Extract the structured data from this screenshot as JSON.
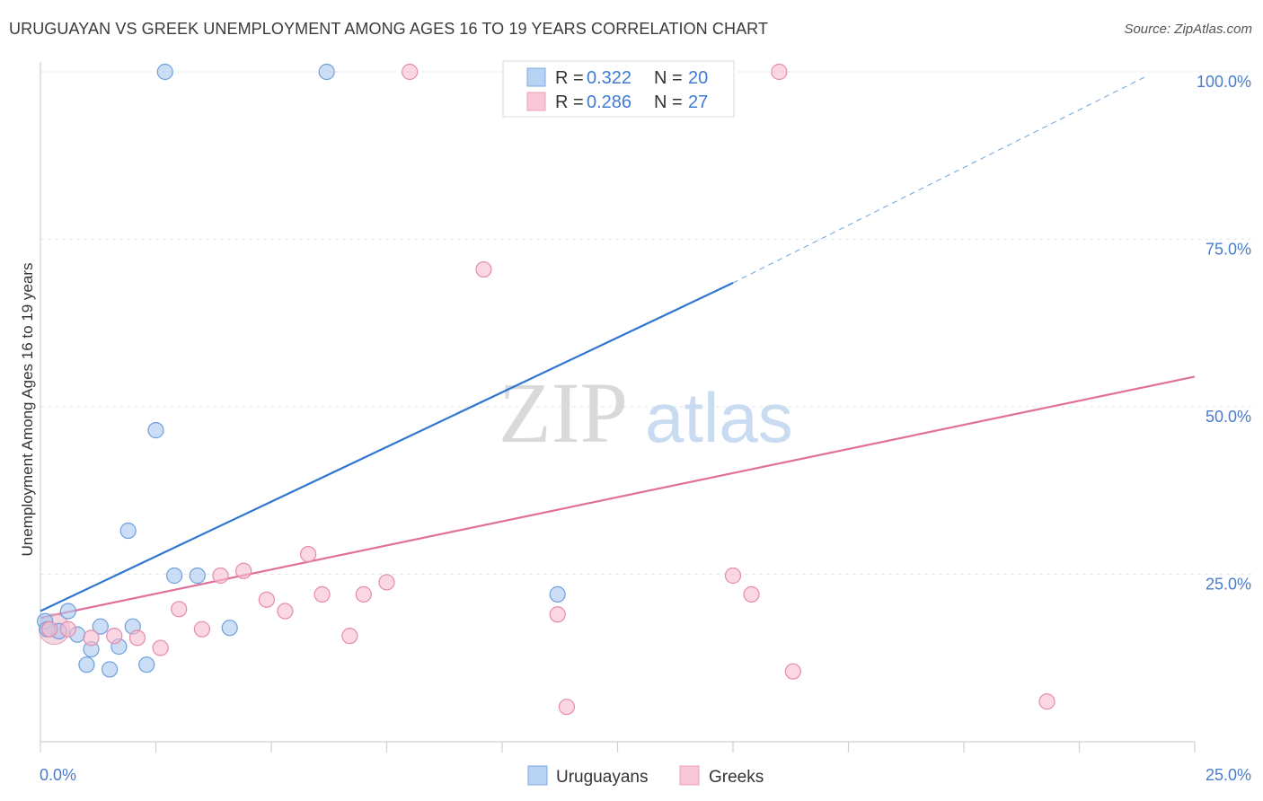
{
  "title": "URUGUAYAN VS GREEK UNEMPLOYMENT AMONG AGES 16 TO 19 YEARS CORRELATION CHART",
  "source": "Source: ZipAtlas.com",
  "watermark": {
    "zip": "ZIP",
    "atlas": "atlas"
  },
  "colors": {
    "blue": "#4a7cc9",
    "blue_fill": "#a9c8f0",
    "blue_line": "#2f76d1",
    "pink": "#e07099",
    "pink_fill": "#f6bccf",
    "pink_line": "#e0709a"
  },
  "chart_data": {
    "type": "scatter",
    "xlabel": "",
    "ylabel": "Unemployment Among Ages 16 to 19 years",
    "xlim": [
      0,
      25
    ],
    "ylim": [
      0,
      100
    ],
    "x_tick_labels": [
      "0.0%",
      "25.0%"
    ],
    "y_ticks": [
      {
        "value": 25,
        "label": "25.0%"
      },
      {
        "value": 50,
        "label": "50.0%"
      },
      {
        "value": 75,
        "label": "75.0%"
      },
      {
        "value": 100,
        "label": "100.0%"
      }
    ],
    "grid": true,
    "legend": {
      "placement": "top-center",
      "rows": [
        {
          "r_label": "R =",
          "r_value": "0.322",
          "n_label": "N =",
          "n_value": "20"
        },
        {
          "r_label": "R =",
          "r_value": "0.286",
          "n_label": "N =",
          "n_value": "27"
        }
      ]
    },
    "series": [
      {
        "name": "Uruguayans",
        "color": "#a9c8f0",
        "points": [
          [
            0.1,
            18.0
          ],
          [
            0.4,
            16.5
          ],
          [
            0.6,
            19.5
          ],
          [
            0.8,
            16.0
          ],
          [
            1.0,
            11.5
          ],
          [
            1.1,
            13.8
          ],
          [
            1.3,
            17.2
          ],
          [
            1.5,
            10.8
          ],
          [
            1.7,
            14.2
          ],
          [
            1.9,
            31.5
          ],
          [
            2.0,
            17.2
          ],
          [
            2.3,
            11.5
          ],
          [
            2.5,
            46.5
          ],
          [
            2.7,
            100.0
          ],
          [
            2.9,
            24.8
          ],
          [
            3.4,
            24.8
          ],
          [
            4.1,
            17.0
          ],
          [
            6.2,
            100.0
          ],
          [
            11.2,
            22.0
          ],
          [
            0.15,
            16.8
          ]
        ],
        "trend": {
          "x1": 0.0,
          "y1": 19.5,
          "x2": 15.0,
          "y2": 68.5,
          "dash_x2": 24.0,
          "dash_y2": 99.5
        }
      },
      {
        "name": "Greeks",
        "color": "#f6bccf",
        "points": [
          [
            0.2,
            16.8
          ],
          [
            0.6,
            16.8
          ],
          [
            1.1,
            15.5
          ],
          [
            1.6,
            15.8
          ],
          [
            2.1,
            15.5
          ],
          [
            2.6,
            14.0
          ],
          [
            3.0,
            19.8
          ],
          [
            3.5,
            16.8
          ],
          [
            3.9,
            24.8
          ],
          [
            4.4,
            25.5
          ],
          [
            4.9,
            21.2
          ],
          [
            5.3,
            19.5
          ],
          [
            5.8,
            28.0
          ],
          [
            6.1,
            22.0
          ],
          [
            6.7,
            15.8
          ],
          [
            7.0,
            22.0
          ],
          [
            7.5,
            23.8
          ],
          [
            8.0,
            100.0
          ],
          [
            9.6,
            70.5
          ],
          [
            11.2,
            19.0
          ],
          [
            11.4,
            5.2
          ],
          [
            14.0,
            100.0
          ],
          [
            15.0,
            24.8
          ],
          [
            15.4,
            22.0
          ],
          [
            16.0,
            100.0
          ],
          [
            16.3,
            10.5
          ],
          [
            21.8,
            6.0
          ]
        ],
        "trend": {
          "x1": 0.0,
          "y1": 18.5,
          "x2": 25.0,
          "y2": 54.5
        }
      }
    ]
  }
}
